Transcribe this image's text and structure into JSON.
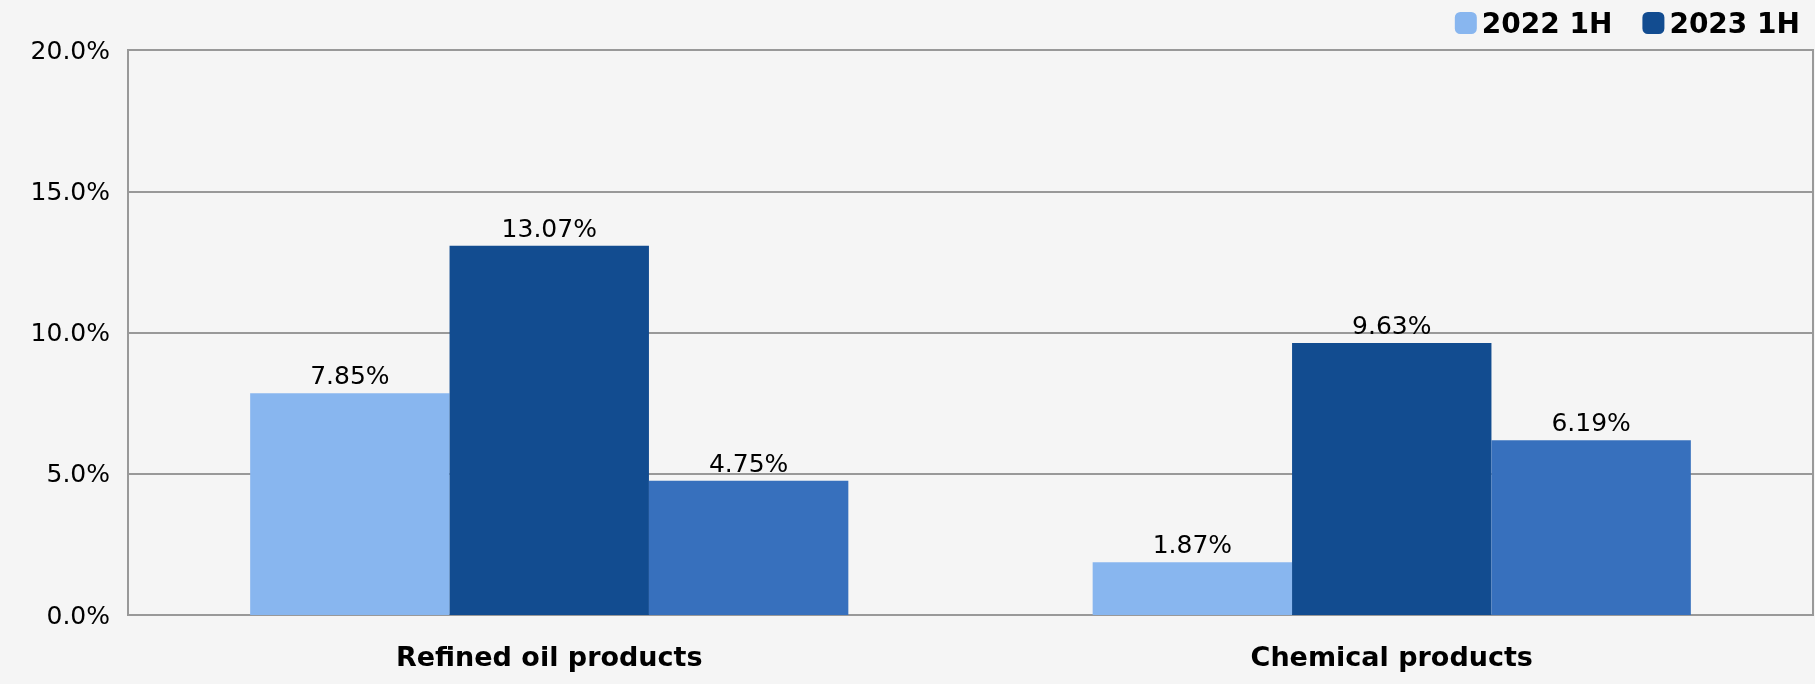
{
  "chart_data": {
    "type": "bar",
    "categories": [
      "Refined oil products",
      "Chemical products"
    ],
    "series": [
      {
        "name": "2022 1H",
        "color": "#88b6ef",
        "values": [
          7.85,
          1.87
        ],
        "value_labels": [
          "7.85%",
          "1.87%"
        ]
      },
      {
        "name": "2023 1H",
        "color": "#124c90",
        "values": [
          13.07,
          9.63
        ],
        "value_labels": [
          "13.07%",
          "9.63%"
        ]
      },
      {
        "color": "#3770bd",
        "values": [
          4.75,
          6.19
        ],
        "value_labels": [
          "4.75%",
          "6.19%"
        ]
      }
    ],
    "ylim": [
      0,
      20
    ],
    "yticks": [
      {
        "value": 0,
        "label": "0.0%"
      },
      {
        "value": 5,
        "label": "5.0%"
      },
      {
        "value": 10,
        "label": "10.0%"
      },
      {
        "value": 15,
        "label": "15.0%"
      },
      {
        "value": 20,
        "label": "20.0%"
      }
    ],
    "grid": "y",
    "legend": "top right"
  }
}
